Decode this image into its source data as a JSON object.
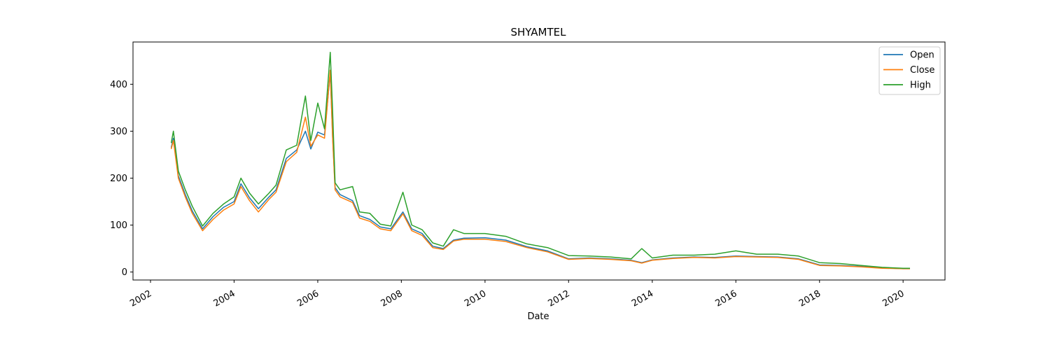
{
  "chart_data": {
    "type": "line",
    "title": "SHYAMTEL",
    "xlabel": "Date",
    "ylabel": "",
    "x_axis_type": "date",
    "xlim": [
      "2001-08-01",
      "2021-01-01"
    ],
    "ylim": [
      -17,
      490
    ],
    "x_ticks": [
      "2002",
      "2004",
      "2006",
      "2008",
      "2010",
      "2012",
      "2014",
      "2016",
      "2018",
      "2020"
    ],
    "y_ticks": [
      0,
      100,
      200,
      300,
      400
    ],
    "legend_position": "top-right",
    "grid": false,
    "x": [
      "2002-07-01",
      "2002-07-20",
      "2002-09-01",
      "2002-11-01",
      "2003-01-01",
      "2003-04-01",
      "2003-07-01",
      "2003-10-01",
      "2004-01-01",
      "2004-03-01",
      "2004-05-15",
      "2004-08-01",
      "2004-11-01",
      "2005-01-01",
      "2005-04-01",
      "2005-07-01",
      "2005-09-15",
      "2005-11-01",
      "2006-01-01",
      "2006-03-01",
      "2006-04-20",
      "2006-05-10",
      "2006-06-01",
      "2006-07-15",
      "2006-11-01",
      "2007-01-01",
      "2007-04-01",
      "2007-07-01",
      "2007-10-01",
      "2008-01-15",
      "2008-04-01",
      "2008-07-01",
      "2008-10-01",
      "2009-01-01",
      "2009-04-01",
      "2009-07-01",
      "2010-01-01",
      "2010-07-01",
      "2011-01-01",
      "2011-07-01",
      "2012-01-01",
      "2012-07-01",
      "2013-01-01",
      "2013-07-01",
      "2013-10-01",
      "2014-01-01",
      "2014-07-01",
      "2015-01-01",
      "2015-07-01",
      "2016-01-01",
      "2016-07-01",
      "2017-01-01",
      "2017-07-01",
      "2018-01-01",
      "2018-07-01",
      "2019-01-01",
      "2019-07-01",
      "2020-01-01",
      "2020-03-01"
    ],
    "series": [
      {
        "name": "Open",
        "color": "#1f77b4",
        "values": [
          265,
          285,
          205,
          165,
          130,
          92,
          118,
          138,
          150,
          188,
          158,
          135,
          160,
          175,
          242,
          260,
          300,
          262,
          298,
          292,
          425,
          290,
          180,
          165,
          152,
          120,
          112,
          96,
          92,
          128,
          92,
          82,
          55,
          50,
          68,
          72,
          73,
          68,
          54,
          45,
          28,
          30,
          28,
          25,
          20,
          26,
          30,
          32,
          31,
          34,
          33,
          32,
          28,
          15,
          14,
          12,
          9,
          7,
          7
        ]
      },
      {
        "name": "Close",
        "color": "#ff7f0e",
        "values": [
          262,
          280,
          200,
          160,
          125,
          88,
          112,
          132,
          145,
          182,
          152,
          128,
          155,
          170,
          235,
          255,
          330,
          268,
          292,
          285,
          430,
          288,
          175,
          160,
          148,
          115,
          108,
          92,
          88,
          124,
          88,
          78,
          52,
          48,
          66,
          70,
          70,
          65,
          52,
          43,
          27,
          29,
          27,
          24,
          19,
          25,
          29,
          31,
          30,
          33,
          32,
          31,
          27,
          14,
          13,
          11,
          8,
          7,
          7
        ]
      },
      {
        "name": "High",
        "color": "#2ca02c",
        "values": [
          275,
          300,
          215,
          175,
          140,
          98,
          125,
          145,
          160,
          200,
          168,
          145,
          168,
          185,
          260,
          270,
          375,
          280,
          360,
          305,
          468,
          345,
          190,
          175,
          182,
          128,
          125,
          102,
          98,
          170,
          100,
          90,
          62,
          55,
          90,
          82,
          82,
          76,
          60,
          52,
          35,
          34,
          32,
          28,
          50,
          30,
          36,
          36,
          38,
          45,
          38,
          38,
          34,
          20,
          18,
          14,
          10,
          8,
          8
        ]
      }
    ]
  }
}
